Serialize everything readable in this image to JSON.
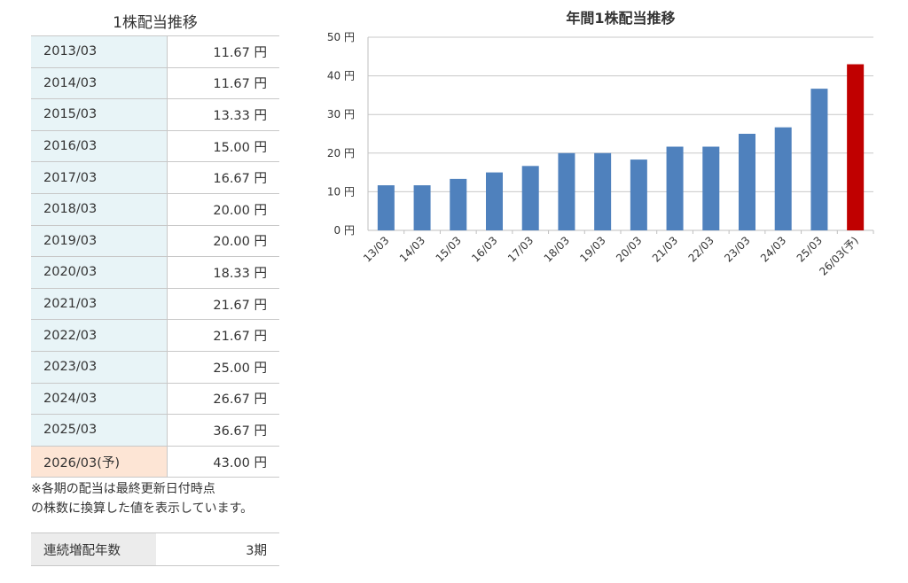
{
  "table": {
    "title": "1株配当推移",
    "rows": [
      {
        "period": "2013/03",
        "amount": "11.67 円",
        "forecast": false
      },
      {
        "period": "2014/03",
        "amount": "11.67 円",
        "forecast": false
      },
      {
        "period": "2015/03",
        "amount": "13.33 円",
        "forecast": false
      },
      {
        "period": "2016/03",
        "amount": "15.00 円",
        "forecast": false
      },
      {
        "period": "2017/03",
        "amount": "16.67 円",
        "forecast": false
      },
      {
        "period": "2018/03",
        "amount": "20.00 円",
        "forecast": false
      },
      {
        "period": "2019/03",
        "amount": "20.00 円",
        "forecast": false
      },
      {
        "period": "2020/03",
        "amount": "18.33 円",
        "forecast": false
      },
      {
        "period": "2021/03",
        "amount": "21.67 円",
        "forecast": false
      },
      {
        "period": "2022/03",
        "amount": "21.67 円",
        "forecast": false
      },
      {
        "period": "2023/03",
        "amount": "25.00 円",
        "forecast": false
      },
      {
        "period": "2024/03",
        "amount": "26.67 円",
        "forecast": false
      },
      {
        "period": "2025/03",
        "amount": "36.67 円",
        "forecast": false
      },
      {
        "period": "2026/03(予)",
        "amount": "43.00 円",
        "forecast": true
      }
    ],
    "note_line1": "※各期の配当は最終更新日付時点",
    "note_line2": "の株数に換算した値を表示しています。"
  },
  "streak": {
    "label": "連続増配年数",
    "value": "3期"
  },
  "chart_data": {
    "type": "bar",
    "title": "年間1株配当推移",
    "categories": [
      "13/03",
      "14/03",
      "15/03",
      "16/03",
      "17/03",
      "18/03",
      "19/03",
      "20/03",
      "21/03",
      "22/03",
      "23/03",
      "24/03",
      "25/03",
      "26/03(予)"
    ],
    "values": [
      11.67,
      11.67,
      13.33,
      15.0,
      16.67,
      20.0,
      20.0,
      18.33,
      21.67,
      21.67,
      25.0,
      26.67,
      36.67,
      43.0
    ],
    "ylim": [
      0,
      50
    ],
    "yticks": [
      0,
      10,
      20,
      30,
      40,
      50
    ],
    "ytick_labels": [
      "0 円",
      "10 円",
      "20 円",
      "30 円",
      "40 円",
      "50 円"
    ],
    "grid": true,
    "bar_color": "#4f81bd",
    "forecast_color": "#c00000",
    "forecast_index": 13
  }
}
